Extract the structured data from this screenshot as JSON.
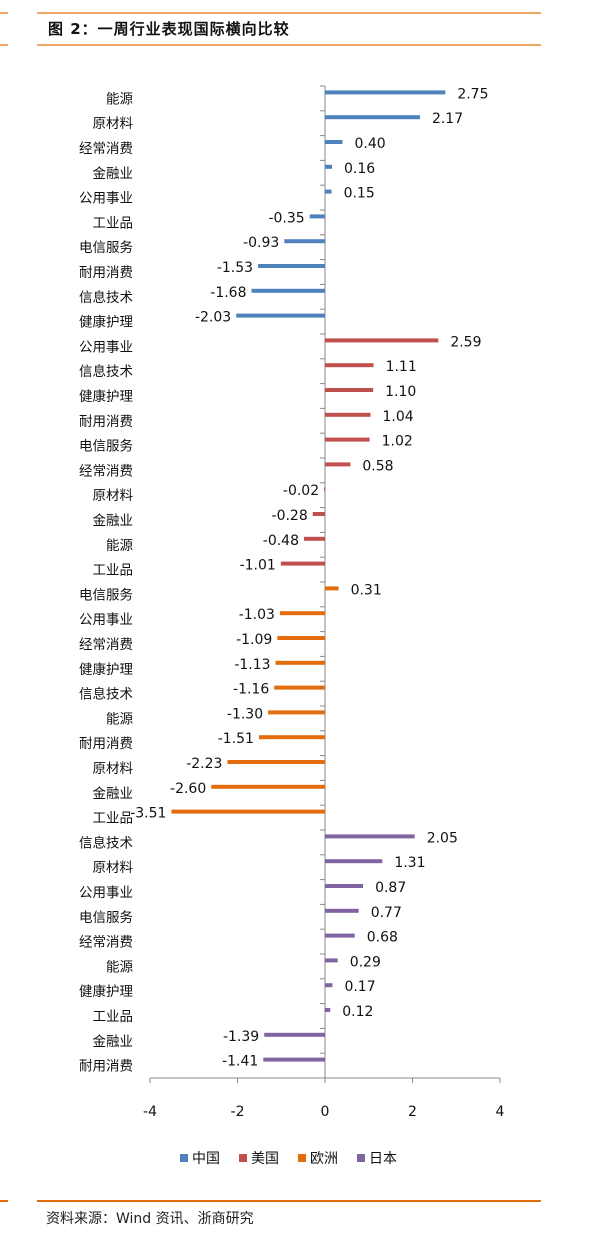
{
  "header": {
    "title": "图 2：一周行业表现国际横向比较"
  },
  "footer": {
    "source": "资料来源：Wind 资讯、浙商研究"
  },
  "chart_data": {
    "type": "bar",
    "orientation": "horizontal",
    "title": "",
    "xlim": [
      -4,
      4
    ],
    "xticks": [
      -4,
      -2,
      0,
      2,
      4
    ],
    "grid": false,
    "legend_position": "bottom",
    "series": [
      {
        "name": "中国",
        "color": "#4F81BD",
        "categories": [
          "能源",
          "原材料",
          "经常消费",
          "金融业",
          "公用事业",
          "工业品",
          "电信服务",
          "耐用消费",
          "信息技术",
          "健康护理"
        ],
        "values": [
          2.75,
          2.17,
          0.4,
          0.16,
          0.15,
          -0.35,
          -0.93,
          -1.53,
          -1.68,
          -2.03
        ],
        "labels": [
          "2.75",
          "2.17",
          "0.40",
          "0.16",
          "0.15",
          "-0.35",
          "-0.93",
          "-1.53",
          "-1.68",
          "-2.03"
        ]
      },
      {
        "name": "美国",
        "color": "#C0504D",
        "categories": [
          "公用事业",
          "信息技术",
          "健康护理",
          "耐用消费",
          "电信服务",
          "经常消费",
          "原材料",
          "金融业",
          "能源",
          "工业品"
        ],
        "values": [
          2.59,
          1.11,
          1.1,
          1.04,
          1.02,
          0.58,
          -0.02,
          -0.28,
          -0.48,
          -1.01
        ],
        "labels": [
          "2.59",
          "1.11",
          "1.10",
          "1.04",
          "1.02",
          "0.58",
          "-0.02",
          "-0.28",
          "-0.48",
          "-1.01"
        ]
      },
      {
        "name": "欧洲",
        "color": "#E46C0A",
        "categories": [
          "电信服务",
          "公用事业",
          "经常消费",
          "健康护理",
          "信息技术",
          "能源",
          "耐用消费",
          "原材料",
          "金融业",
          "工业品"
        ],
        "values": [
          0.31,
          -1.03,
          -1.09,
          -1.13,
          -1.16,
          -1.3,
          -1.51,
          -2.23,
          -2.6,
          -3.51
        ],
        "labels": [
          "0.31",
          "-1.03",
          "-1.09",
          "-1.13",
          "-1.16",
          "-1.30",
          "-1.51",
          "-2.23",
          "-2.60",
          "-3.51"
        ]
      },
      {
        "name": "日本",
        "color": "#8064A2",
        "categories": [
          "信息技术",
          "原材料",
          "公用事业",
          "电信服务",
          "经常消费",
          "能源",
          "健康护理",
          "工业品",
          "金融业",
          "耐用消费"
        ],
        "values": [
          2.05,
          1.31,
          0.87,
          0.77,
          0.68,
          0.29,
          0.17,
          0.12,
          -1.39,
          -1.41
        ],
        "labels": [
          "2.05",
          "1.31",
          "0.87",
          "0.77",
          "0.68",
          "0.29",
          "0.17",
          "0.12",
          "-1.39",
          "-1.41"
        ]
      }
    ]
  }
}
